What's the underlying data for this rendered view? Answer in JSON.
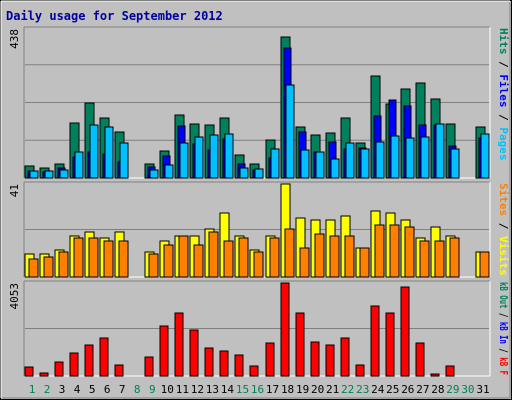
{
  "title": "Daily usage for September 2012",
  "colors": {
    "background": "#c0c0c0",
    "title": "#0000a0",
    "hits": "#00805c",
    "files": "#0000ff",
    "pages": "#00c0ff",
    "visits": "#ffff00",
    "sites": "#ff8000",
    "kbytes": "#ff0000",
    "weekend": "#00805c",
    "weekday": "#000000"
  },
  "chart_data": [
    {
      "type": "bar",
      "name": "hits-files-pages",
      "ymax_label": "438",
      "ylim": [
        0,
        438
      ],
      "grid": true,
      "axis_label": [
        {
          "text": "Pages",
          "color": "#00c0ff"
        },
        {
          "text": " / ",
          "color": "#000000"
        },
        {
          "text": "Files",
          "color": "#0000ff"
        },
        {
          "text": " / ",
          "color": "#000000"
        },
        {
          "text": "Hits",
          "color": "#00805c"
        }
      ],
      "categories": [
        "1",
        "2",
        "3",
        "4",
        "5",
        "6",
        "7",
        "8",
        "9",
        "10",
        "11",
        "12",
        "13",
        "14",
        "15",
        "16",
        "17",
        "18",
        "19",
        "20",
        "21",
        "22",
        "23",
        "24",
        "25",
        "26",
        "27",
        "28",
        "29",
        "30",
        "31"
      ],
      "series": [
        {
          "name": "Hits",
          "color": "#00805c",
          "values": [
            34,
            28,
            40,
            163,
            220,
            175,
            134,
            0,
            40,
            79,
            184,
            159,
            157,
            176,
            67,
            40,
            113,
            415,
            151,
            127,
            132,
            175,
            104,
            300,
            217,
            261,
            278,
            233,
            160,
            0,
            150
          ]
        },
        {
          "name": "Files",
          "color": "#0000ff",
          "values": [
            21,
            18,
            28,
            63,
            75,
            70,
            46,
            0,
            32,
            65,
            152,
            101,
            81,
            116,
            40,
            23,
            59,
            382,
            135,
            76,
            106,
            84,
            87,
            183,
            229,
            211,
            157,
            157,
            94,
            0,
            119
          ]
        },
        {
          "name": "Pages",
          "color": "#00c0ff",
          "values": [
            22,
            20,
            23,
            76,
            156,
            151,
            103,
            0,
            24,
            39,
            103,
            120,
            125,
            130,
            29,
            27,
            86,
            272,
            83,
            75,
            57,
            102,
            86,
            106,
            124,
            119,
            120,
            158,
            84,
            0,
            129
          ]
        }
      ]
    },
    {
      "type": "bar",
      "name": "visits-sites",
      "ymax_label": "41",
      "ylim": [
        0,
        41
      ],
      "grid": true,
      "axis_label": [
        {
          "text": "Visits",
          "color": "#ffff00"
        },
        {
          "text": " / ",
          "color": "#000000"
        },
        {
          "text": "Sites",
          "color": "#ff8000"
        }
      ],
      "categories": [
        "1",
        "2",
        "3",
        "4",
        "5",
        "6",
        "7",
        "8",
        "9",
        "10",
        "11",
        "12",
        "13",
        "14",
        "15",
        "16",
        "17",
        "18",
        "19",
        "20",
        "21",
        "22",
        "23",
        "24",
        "25",
        "26",
        "27",
        "28",
        "29",
        "30",
        "31"
      ],
      "series": [
        {
          "name": "Visits",
          "color": "#ffff00",
          "values": [
            10,
            10,
            12,
            18,
            20,
            17,
            20,
            0,
            11,
            16,
            18,
            18,
            21,
            28,
            18,
            12,
            18,
            41,
            26,
            25,
            25,
            27,
            13,
            29,
            28,
            25,
            17,
            22,
            18,
            0,
            11
          ]
        },
        {
          "name": "Sites",
          "color": "#ff8000",
          "values": [
            8,
            9,
            11,
            17,
            17,
            16,
            16,
            0,
            10,
            14,
            18,
            14,
            20,
            16,
            17,
            11,
            17,
            21,
            13,
            19,
            18,
            18,
            13,
            23,
            23,
            22,
            16,
            16,
            17,
            0,
            11
          ]
        }
      ]
    },
    {
      "type": "bar",
      "name": "kbytes",
      "ymax_label": "4053",
      "ylim": [
        0,
        4053
      ],
      "grid": true,
      "axis_label": [
        {
          "text": "kB F",
          "color": "#ff0000"
        },
        {
          "text": " / ",
          "color": "#000000"
        },
        {
          "text": "kB In",
          "color": "#0000ff"
        },
        {
          "text": " / ",
          "color": "#000000"
        },
        {
          "text": "kB Out",
          "color": "#00805c"
        }
      ],
      "categories": [
        "1",
        "2",
        "3",
        "4",
        "5",
        "6",
        "7",
        "8",
        "9",
        "10",
        "11",
        "12",
        "13",
        "14",
        "15",
        "16",
        "17",
        "18",
        "19",
        "20",
        "21",
        "22",
        "23",
        "24",
        "25",
        "26",
        "27",
        "28",
        "29",
        "30",
        "31"
      ],
      "series": [
        {
          "name": "kB F",
          "color": "#ff0000",
          "values": [
            400,
            120,
            600,
            1000,
            1330,
            1660,
            500,
            0,
            830,
            2200,
            2750,
            2000,
            1200,
            1100,
            900,
            450,
            1450,
            4053,
            2750,
            1500,
            1350,
            1660,
            500,
            3060,
            2750,
            3900,
            1450,
            100,
            450,
            0,
            0
          ]
        }
      ],
      "weekend_days": [
        "1",
        "2",
        "8",
        "9",
        "15",
        "16",
        "22",
        "23",
        "29",
        "30"
      ]
    }
  ]
}
